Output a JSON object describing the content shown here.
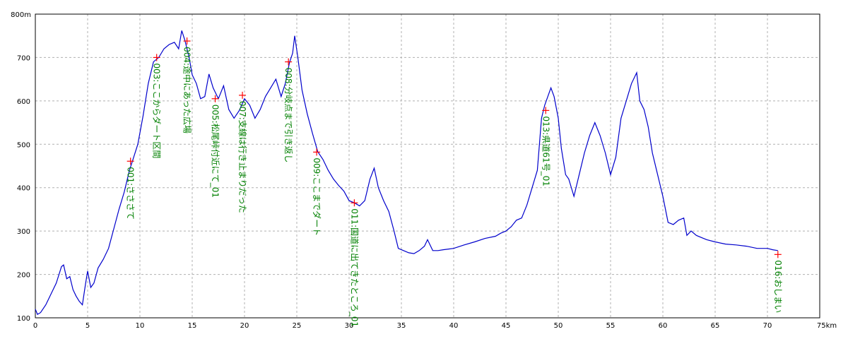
{
  "chart_data": {
    "type": "line",
    "xunit": "km",
    "yunit": "m",
    "xlim": [
      0,
      75
    ],
    "ylim": [
      100,
      800
    ],
    "xticks": [
      0,
      5,
      10,
      15,
      20,
      25,
      30,
      35,
      40,
      45,
      50,
      55,
      60,
      65,
      70,
      75
    ],
    "yticks": [
      100,
      200,
      300,
      400,
      500,
      600,
      700,
      800
    ],
    "x_tick_labels": [
      "0",
      "5",
      "10",
      "15",
      "20",
      "25",
      "30",
      "35",
      "40",
      "45",
      "50",
      "55",
      "60",
      "65",
      "70",
      "75km"
    ],
    "y_tick_labels": [
      "100",
      "200",
      "300",
      "400",
      "500",
      "600",
      "700",
      "800m"
    ],
    "grid": true,
    "line_color": "#0000cc",
    "marker_color": "#ff0000",
    "label_color": "#008000",
    "series": [
      {
        "x": [
          0,
          0.2,
          0.5,
          1.0,
          1.5,
          2.0,
          2.5,
          2.7,
          3.0,
          3.3,
          3.6,
          3.9,
          4.2,
          4.5,
          4.8,
          5.0,
          5.3,
          5.6,
          6.0,
          6.5,
          7.0,
          7.5,
          8.0,
          8.5,
          9.0,
          9.3,
          9.8,
          10.3,
          10.8,
          11.3,
          11.8,
          12.3,
          12.8,
          13.3,
          13.7,
          14.0,
          14.3,
          14.7,
          15.0,
          15.4,
          15.8,
          16.2,
          16.6,
          17.0,
          17.5,
          18.0,
          18.5,
          19.0,
          19.5,
          20.0,
          20.5,
          21.0,
          21.5,
          22.0,
          22.5,
          23.0,
          23.5,
          23.9,
          24.3,
          24.6,
          24.8,
          25.1,
          25.5,
          26.0,
          26.5,
          27.0,
          27.5,
          28.0,
          28.5,
          29.0,
          29.5,
          30.0,
          30.5,
          31.0,
          31.5,
          32.0,
          32.4,
          32.8,
          33.3,
          33.8,
          34.3,
          34.7,
          35.2,
          35.7,
          36.2,
          36.7,
          37.2,
          37.5,
          38.0,
          38.5,
          39.0,
          40.0,
          41.0,
          42.0,
          43.0,
          44.0,
          44.5,
          45.0,
          45.5,
          46.0,
          46.5,
          47.0,
          47.5,
          48.0,
          48.4,
          48.7,
          49.0,
          49.3,
          49.6,
          50.0,
          50.3,
          50.7,
          51.0,
          51.5,
          52.0,
          52.5,
          53.0,
          53.5,
          54.0,
          54.5,
          55.0,
          55.5,
          56.0,
          56.5,
          57.0,
          57.5,
          57.8,
          58.2,
          58.6,
          59.0,
          59.5,
          60.0,
          60.5,
          61.0,
          61.5,
          62.0,
          62.3,
          62.7,
          63.2,
          63.7,
          64.2,
          65.0,
          66.0,
          67.0,
          68.0,
          69.0,
          70.0,
          70.5,
          71.0
        ],
        "y": [
          120,
          108,
          112,
          130,
          155,
          180,
          218,
          222,
          190,
          195,
          165,
          150,
          138,
          130,
          178,
          208,
          170,
          180,
          215,
          235,
          260,
          305,
          350,
          390,
          440,
          462,
          500,
          565,
          640,
          690,
          700,
          720,
          730,
          735,
          720,
          762,
          740,
          700,
          660,
          640,
          605,
          610,
          662,
          630,
          605,
          635,
          580,
          560,
          578,
          605,
          590,
          560,
          580,
          610,
          630,
          650,
          610,
          640,
          688,
          710,
          750,
          700,
          625,
          570,
          525,
          483,
          465,
          440,
          420,
          405,
          392,
          370,
          365,
          358,
          370,
          420,
          445,
          400,
          370,
          345,
          300,
          260,
          255,
          250,
          248,
          255,
          265,
          280,
          255,
          255,
          257,
          260,
          268,
          275,
          283,
          288,
          295,
          300,
          310,
          325,
          330,
          360,
          400,
          440,
          560,
          590,
          610,
          630,
          610,
          560,
          490,
          430,
          420,
          380,
          430,
          480,
          520,
          550,
          520,
          480,
          430,
          470,
          560,
          600,
          640,
          665,
          600,
          580,
          540,
          480,
          430,
          380,
          320,
          315,
          325,
          330,
          290,
          300,
          290,
          285,
          280,
          275,
          270,
          268,
          265,
          260,
          260,
          257,
          255
        ]
      }
    ],
    "waypoints": [
      {
        "x": 9.1,
        "y": 461,
        "label": "001:さささて"
      },
      {
        "x": 11.6,
        "y": 700,
        "label": "003:ここからダート区間"
      },
      {
        "x": 14.5,
        "y": 738,
        "label": "004:途中にあった広場"
      },
      {
        "x": 17.2,
        "y": 605,
        "label": "005:松尾峠付近にて_01"
      },
      {
        "x": 19.8,
        "y": 613,
        "label": "007:支線は行き止まりだった"
      },
      {
        "x": 24.2,
        "y": 690,
        "label": "008:分岐点まで引き返し"
      },
      {
        "x": 26.9,
        "y": 482,
        "label": "009:ここまでダート"
      },
      {
        "x": 30.5,
        "y": 365,
        "label": "011:国道に出てきたところ_01"
      },
      {
        "x": 48.8,
        "y": 578,
        "label": "013:県道61号_01"
      },
      {
        "x": 71.0,
        "y": 246,
        "label": "016:おしまい"
      }
    ]
  }
}
